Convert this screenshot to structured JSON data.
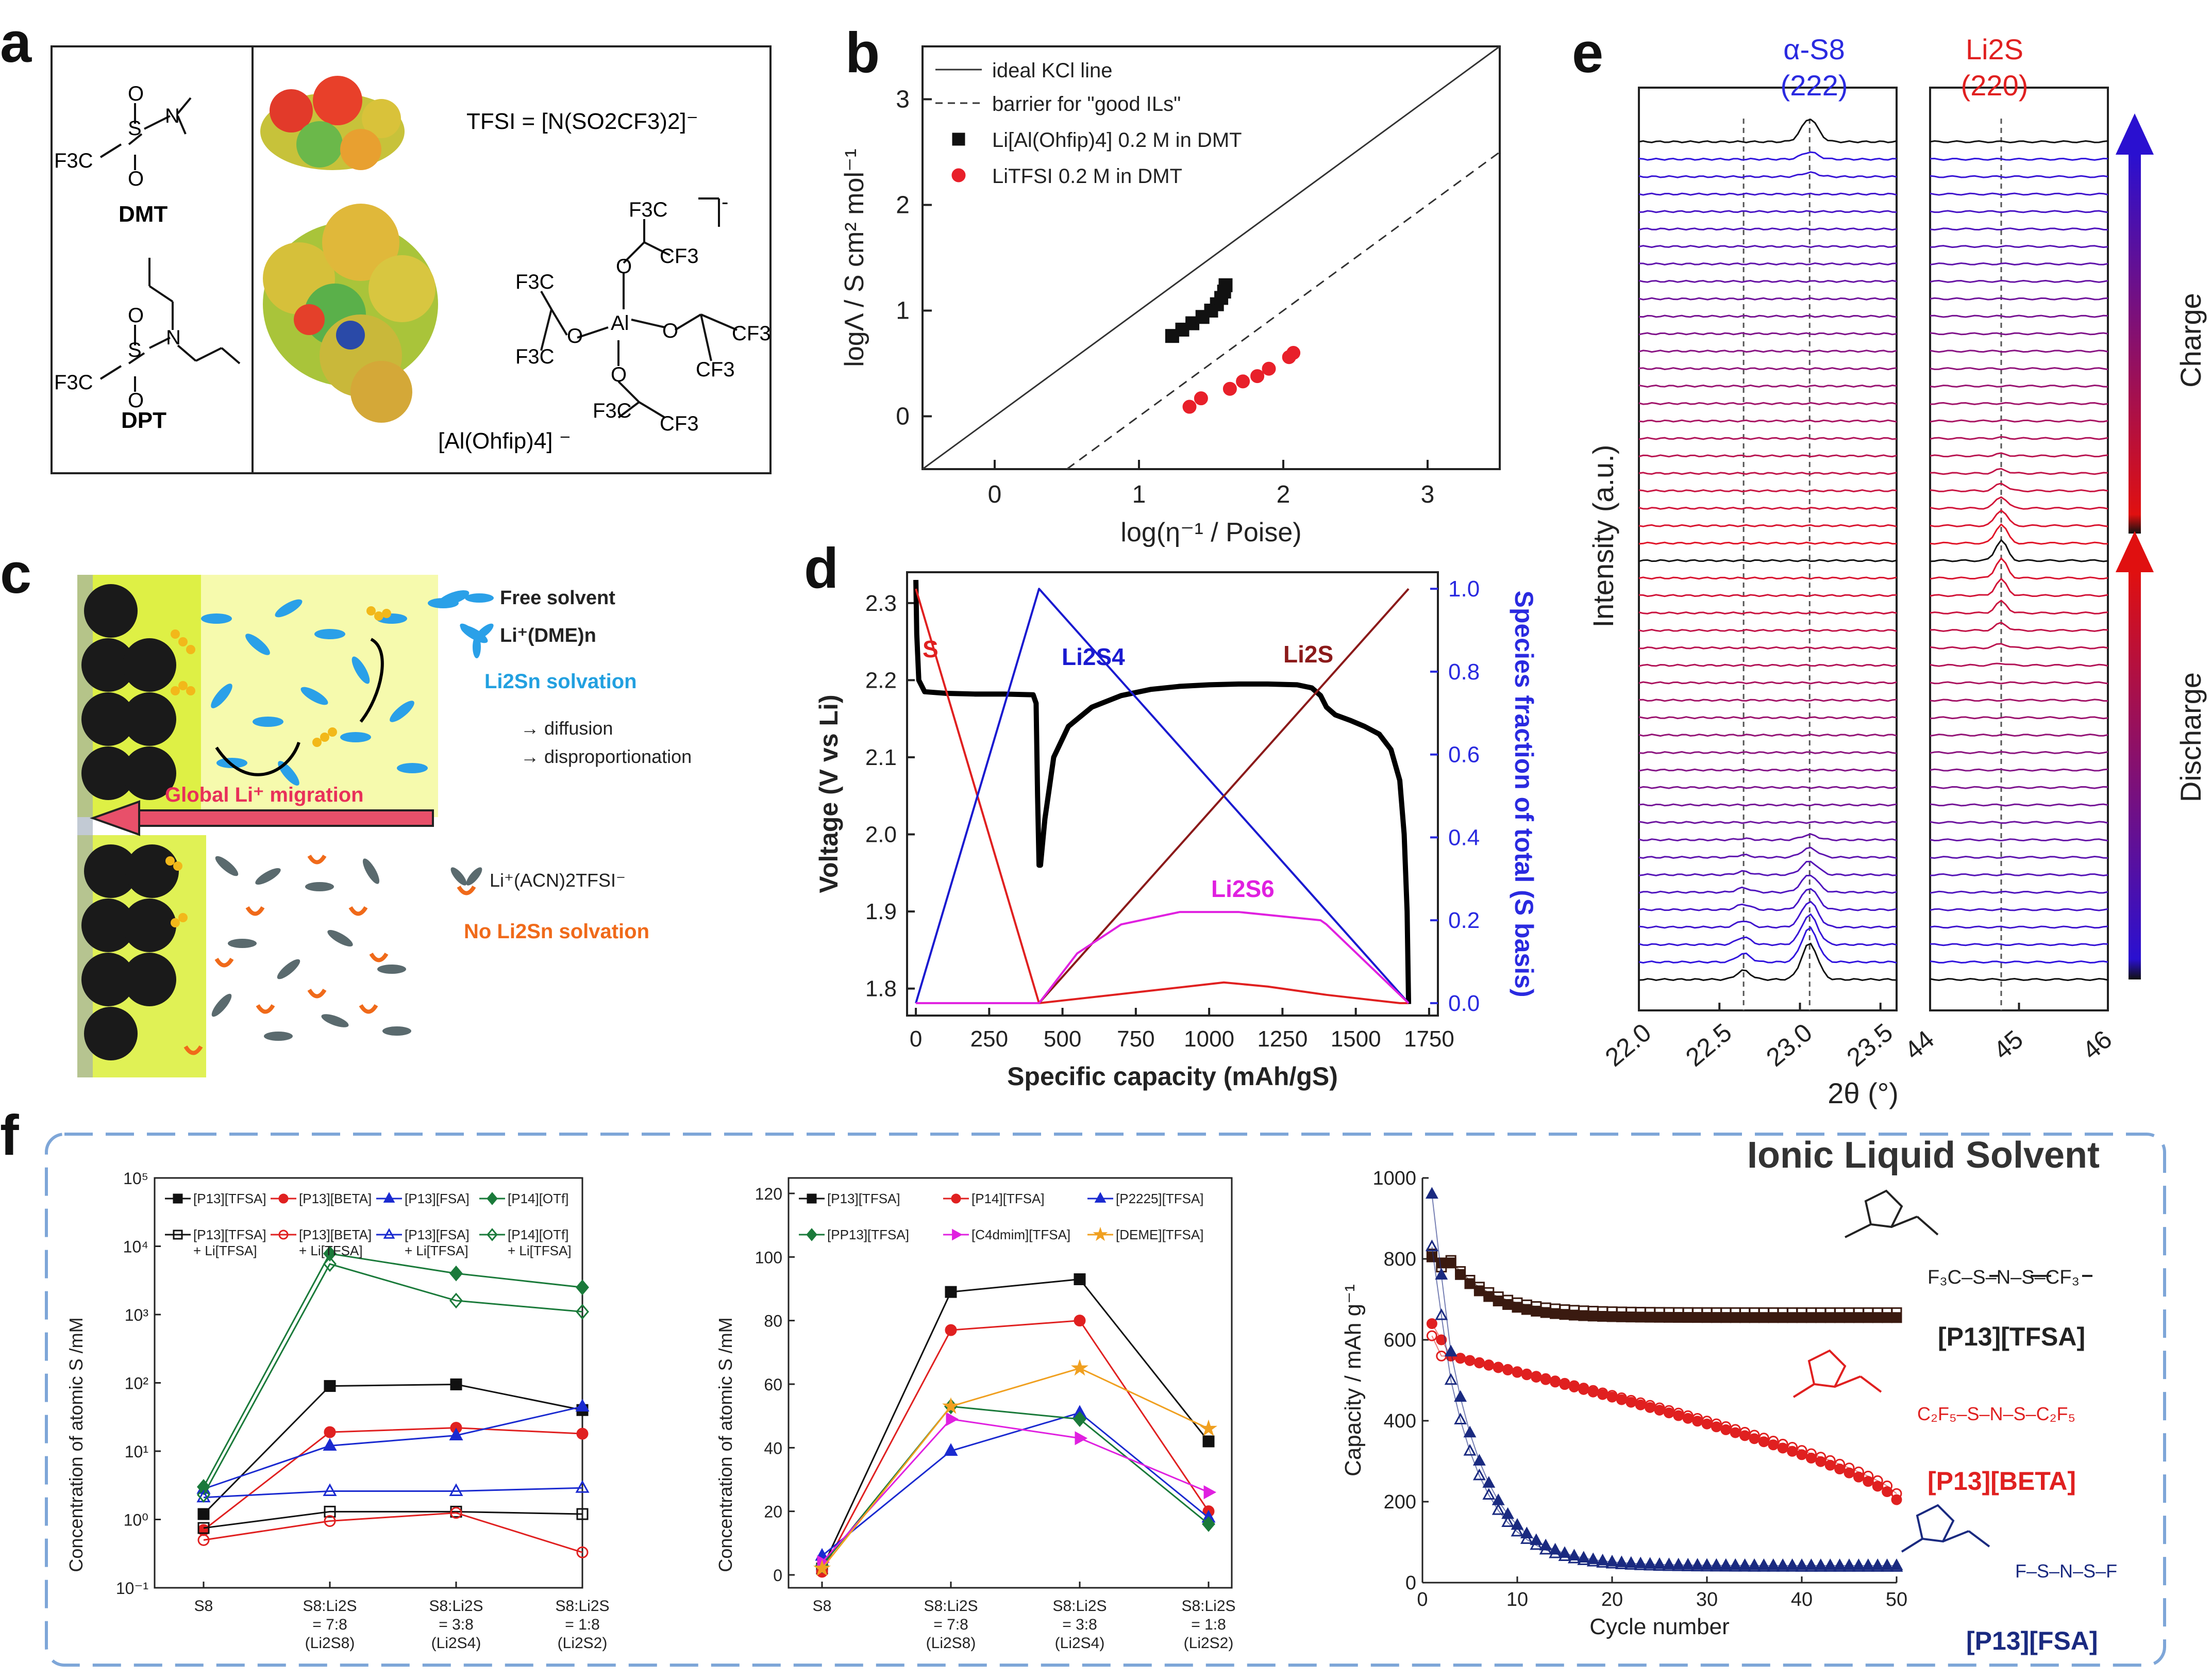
{
  "panel_letters": {
    "a": "a",
    "b": "b",
    "c": "c",
    "d": "d",
    "e": "e",
    "f": "f"
  },
  "panel_a": {
    "dmt_label": "DMT",
    "dpt_label": "DPT",
    "tfsi_formula": "TFSI = [N(SO2CF3)2]⁻",
    "al_label": "[Al(Ohfip)4] ⁻",
    "f3c": "F3C",
    "cf3": "CF3",
    "o": "O",
    "al": "Al",
    "s": "S",
    "n": "N"
  },
  "panel_c": {
    "free_solvent": "Free solvent",
    "li_dme": "Li⁺(DME)n",
    "solvation": "Li2Sn solvation",
    "diffusion": "→ diffusion",
    "disproportionation": "→ disproportionation",
    "migration": "Global Li⁺ migration",
    "li_acn": "Li⁺(ACN)2TFSI⁻",
    "no_solvation": "No Li2Sn solvation"
  },
  "panel_e_labels": {
    "s8": "α-S8",
    "s8_hkl": "(222)",
    "li2s": "Li2S",
    "li2s_hkl": "(220)",
    "ylabel": "Intensity (a.u.)",
    "xlabel": "2θ (°)",
    "charge": "Charge",
    "discharge": "Discharge",
    "ticks_left": [
      "22.0",
      "22.5",
      "23.0",
      "23.5"
    ],
    "ticks_right": [
      "44",
      "45",
      "46"
    ]
  },
  "panel_f_title": "Ionic Liquid Solvent",
  "panel_f_ils": [
    "[P13][TFSA]",
    "[P13][BETA]",
    "[P13][FSA]"
  ],
  "chart_data": [
    {
      "id": "b",
      "type": "scatter",
      "xlabel": "log(η⁻¹ / Poise)",
      "ylabel": "logΛ / S cm² mol⁻¹",
      "xlim": [
        -0.5,
        3.5
      ],
      "ylim": [
        -0.5,
        3.5
      ],
      "xticks": [
        "0",
        "1",
        "2",
        "3"
      ],
      "yticks": [
        "0",
        "1",
        "2",
        "3"
      ],
      "legend": [
        "ideal KCl line",
        "barrier for \"good ILs\"",
        "Li[Al(Ohfip)4] 0.2 M in DMT",
        "LiTFSI 0.2 M in DMT"
      ],
      "lines": [
        {
          "name": "ideal KCl line",
          "points": [
            [
              -0.5,
              -0.5
            ],
            [
              3.5,
              3.5
            ]
          ],
          "dash": false
        },
        {
          "name": "barrier for \"good ILs\"",
          "points": [
            [
              0.5,
              -0.5
            ],
            [
              3.5,
              2.5
            ]
          ],
          "dash": true
        }
      ],
      "series": [
        {
          "name": "Li[Al(Ohfip)4] 0.2 M in DMT",
          "color": "#111111",
          "marker": "square",
          "x": [
            1.23,
            1.3,
            1.37,
            1.44,
            1.5,
            1.54,
            1.57,
            1.59,
            1.6
          ],
          "y": [
            0.76,
            0.82,
            0.88,
            0.94,
            1.0,
            1.06,
            1.12,
            1.18,
            1.24
          ]
        },
        {
          "name": "LiTFSI 0.2 M in DMT",
          "color": "#e8202a",
          "marker": "circle",
          "x": [
            1.35,
            1.43,
            1.63,
            1.72,
            1.82,
            1.9,
            2.04,
            2.07
          ],
          "y": [
            0.09,
            0.17,
            0.26,
            0.33,
            0.38,
            0.45,
            0.56,
            0.6
          ]
        }
      ]
    },
    {
      "id": "d",
      "type": "line",
      "xlabel": "Specific capacity (mAh/gS)",
      "ylabel": "Voltage (V vs Li)",
      "y2label": "Species fraction of total (S basis)",
      "xlim": [
        -30,
        1780
      ],
      "ylim": [
        1.765,
        2.34
      ],
      "y2lim": [
        -0.03,
        1.04
      ],
      "xticks": [
        "0",
        "250",
        "500",
        "750",
        "1000",
        "1250",
        "1500",
        "1750"
      ],
      "yticks": [
        "1.8",
        "1.9",
        "2.0",
        "2.1",
        "2.2",
        "2.3"
      ],
      "y2ticks": [
        "0.0",
        "0.2",
        "0.4",
        "0.6",
        "0.8",
        "1.0"
      ],
      "series": [
        {
          "name": "voltage",
          "axis": "left",
          "color": "#000000",
          "x": [
            0,
            3,
            10,
            30,
            100,
            200,
            300,
            400,
            410,
            415,
            420,
            425,
            440,
            470,
            520,
            600,
            700,
            800,
            900,
            1000,
            1100,
            1200,
            1300,
            1350,
            1380,
            1400,
            1430,
            1480,
            1530,
            1580,
            1620,
            1650,
            1665,
            1675,
            1680
          ],
          "y": [
            2.33,
            2.26,
            2.2,
            2.185,
            2.183,
            2.182,
            2.182,
            2.181,
            2.17,
            2.05,
            1.96,
            1.96,
            2.02,
            2.1,
            2.14,
            2.165,
            2.18,
            2.188,
            2.192,
            2.194,
            2.195,
            2.195,
            2.194,
            2.19,
            2.18,
            2.165,
            2.155,
            2.148,
            2.14,
            2.13,
            2.11,
            2.07,
            2.0,
            1.9,
            1.78
          ]
        },
        {
          "name": "S",
          "axis": "right",
          "color": "#e02020",
          "x": [
            0,
            420,
            800,
            1050,
            1200,
            1400,
            1650,
            1680
          ],
          "y": [
            1.0,
            0.0,
            0.03,
            0.05,
            0.04,
            0.02,
            0.0,
            0.0
          ]
        },
        {
          "name": "Li2S4",
          "axis": "right",
          "color": "#1a1ad0",
          "x": [
            0,
            420,
            1680
          ],
          "y": [
            0.0,
            1.0,
            0.0
          ]
        },
        {
          "name": "Li2S",
          "axis": "right",
          "color": "#8b1a1a",
          "x": [
            420,
            1680
          ],
          "y": [
            0.0,
            1.0
          ]
        },
        {
          "name": "Li2S6",
          "axis": "right",
          "color": "#e020e0",
          "x": [
            0,
            420,
            550,
            700,
            900,
            1100,
            1380,
            1400,
            1680
          ],
          "y": [
            0.0,
            0.0,
            0.12,
            0.19,
            0.22,
            0.22,
            0.2,
            0.19,
            0.0
          ]
        }
      ],
      "labels": [
        "S",
        "Li2S4",
        "Li2S",
        "Li2S6"
      ]
    },
    {
      "id": "f-left",
      "type": "line",
      "ylabel": "Concentration of atomic S /mM",
      "categories": [
        "S8",
        "S8:Li2S = 7:8 (Li2S8)",
        "S8:Li2S = 3:8 (Li2S4)",
        "S8:Li2S = 1:8 (Li2S2)"
      ],
      "yscale": "log",
      "ylim": [
        0.1,
        100000
      ],
      "yticks": [
        "10⁻¹",
        "10⁰",
        "10¹",
        "10²",
        "10³",
        "10⁴",
        "10⁵"
      ],
      "series": [
        {
          "name": "[P13][TFSA]",
          "color": "#111111",
          "marker": "square",
          "filled": true,
          "values": [
            1.2,
            90,
            95,
            40
          ]
        },
        {
          "name": "[P13][BETA]",
          "color": "#e02020",
          "marker": "circle",
          "filled": true,
          "values": [
            0.7,
            19,
            22,
            18
          ]
        },
        {
          "name": "[P13][FSA]",
          "color": "#1a2ad0",
          "marker": "triangle",
          "filled": true,
          "values": [
            2.8,
            12,
            17,
            45
          ]
        },
        {
          "name": "[P14][OTf]",
          "color": "#1a7a3a",
          "marker": "diamond",
          "filled": true,
          "values": [
            3.0,
            7800,
            4000,
            2500
          ]
        },
        {
          "name": "[P13][TFSA] + Li[TFSA]",
          "color": "#111111",
          "marker": "square",
          "filled": false,
          "values": [
            0.75,
            1.3,
            1.3,
            1.2
          ]
        },
        {
          "name": "[P13][BETA] + Li[TFSA]",
          "color": "#e02020",
          "marker": "circle",
          "filled": false,
          "values": [
            0.5,
            0.95,
            1.25,
            0.33
          ]
        },
        {
          "name": "[P13][FSA] + Li[TFSA]",
          "color": "#1a2ad0",
          "marker": "triangle",
          "filled": false,
          "values": [
            2.1,
            2.6,
            2.6,
            2.9
          ]
        },
        {
          "name": "[P14][OTf] + Li[TFSA]",
          "color": "#1a7a3a",
          "marker": "diamond",
          "filled": false,
          "values": [
            2.3,
            5500,
            1600,
            1100
          ]
        }
      ]
    },
    {
      "id": "f-middle",
      "type": "line",
      "ylabel": "Concentration of atomic S /mM",
      "categories": [
        "S8",
        "S8:Li2S = 7:8 (Li2S8)",
        "S8:Li2S = 3:8 (Li2S4)",
        "S8:Li2S = 1:8 (Li2S2)"
      ],
      "ylim": [
        0,
        120
      ],
      "yticks": [
        "0",
        "20",
        "40",
        "60",
        "80",
        "100",
        "120"
      ],
      "series": [
        {
          "name": "[P13][TFSA]",
          "color": "#111111",
          "marker": "square",
          "values": [
            2,
            89,
            93,
            42
          ]
        },
        {
          "name": "[P14][TFSA]",
          "color": "#e02020",
          "marker": "circle",
          "values": [
            1,
            77,
            80,
            20
          ]
        },
        {
          "name": "[P2225][TFSA]",
          "color": "#1a2ad0",
          "marker": "triangle",
          "values": [
            6,
            39,
            51,
            18
          ]
        },
        {
          "name": "[PP13][TFSA]",
          "color": "#1a7a3a",
          "marker": "diamond",
          "values": [
            3,
            53,
            49,
            16
          ]
        },
        {
          "name": "[C4dmim][TFSA]",
          "color": "#e020e0",
          "marker": "triangle-right",
          "values": [
            4,
            49,
            43,
            26
          ]
        },
        {
          "name": "[DEME][TFSA]",
          "color": "#f0a020",
          "marker": "star",
          "values": [
            2,
            53,
            65,
            46
          ]
        }
      ]
    },
    {
      "id": "f-right",
      "type": "scatter",
      "xlabel": "Cycle number",
      "ylabel": "Capacity / mAh g⁻¹",
      "xlim": [
        0,
        50
      ],
      "ylim": [
        0,
        1000
      ],
      "xticks": [
        "0",
        "10",
        "20",
        "30",
        "40",
        "50"
      ],
      "yticks": [
        "0",
        "200",
        "400",
        "600",
        "800",
        "1000"
      ],
      "series": [
        {
          "name": "[P13][TFSA] discharge",
          "color": "#3a1a10",
          "marker": "square",
          "filled": true,
          "start": 790,
          "end": 655,
          "first": [
            805,
            790
          ]
        },
        {
          "name": "[P13][TFSA] charge",
          "color": "#3a1a10",
          "marker": "square",
          "filled": false,
          "start": 796,
          "end": 667,
          "first": [
            812,
            780
          ]
        },
        {
          "name": "[P13][BETA] discharge",
          "color": "#e02020",
          "marker": "circle",
          "filled": true,
          "start": 560,
          "end": 205,
          "first": [
            640,
            600
          ]
        },
        {
          "name": "[P13][BETA] charge",
          "color": "#e02020",
          "marker": "circle",
          "filled": false,
          "start": 560,
          "end": 220,
          "first": [
            610,
            560
          ]
        },
        {
          "name": "[P13][FSA] discharge",
          "color": "#1a2a80",
          "marker": "triangle",
          "filled": true,
          "start": 570,
          "end": 42,
          "first": [
            960,
            760
          ]
        },
        {
          "name": "[P13][FSA] charge",
          "color": "#1a2a80",
          "marker": "triangle",
          "filled": false,
          "start": 500,
          "end": 38,
          "first": [
            830,
            660
          ]
        }
      ]
    },
    {
      "id": "e",
      "type": "line",
      "description_series": "stacked XRD patterns, 49 traces; discharge (bottom half, black→blue→red) then charge (top half, red→blue→black)",
      "xlim_left": [
        22.0,
        23.6
      ],
      "xlim_right": [
        44,
        46
      ],
      "peaks": {
        "S8_222": 23.06,
        "S8_shoulder": 22.65,
        "Li2S_220": 44.8
      },
      "xticks_left": [
        "22.0",
        "22.5",
        "23.0",
        "23.5"
      ],
      "xticks_right": [
        "44",
        "45",
        "46"
      ],
      "xlabel": "2θ (°)",
      "ylabel": "Intensity (a.u.)"
    }
  ]
}
